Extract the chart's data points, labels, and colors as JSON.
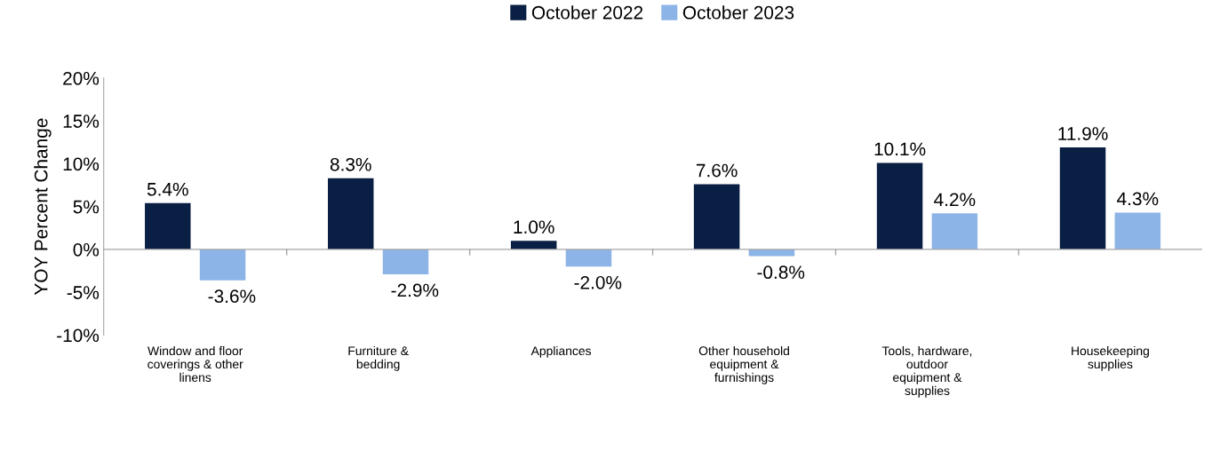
{
  "chart_data": {
    "type": "bar",
    "ylabel": "YOY Percent Change",
    "categories": [
      "Window and floor\ncoverings & other\nlinens",
      "Furniture &\nbedding",
      "Appliances",
      "Other household\nequipment &\nfurnishings",
      "Tools, hardware,\noutdoor\nequipment &\nsupplies",
      "Housekeeping\nsupplies"
    ],
    "series": [
      {
        "name": "October 2022",
        "color": "#0a1f44",
        "values": [
          5.4,
          8.3,
          1.0,
          7.6,
          10.1,
          11.9
        ],
        "value_labels": [
          "5.4%",
          "8.3%",
          "1.0%",
          "7.6%",
          "10.1%",
          "11.9%"
        ]
      },
      {
        "name": "October 2023",
        "color": "#8db4e6",
        "values": [
          -3.6,
          -2.9,
          -2.0,
          -0.8,
          4.2,
          4.3
        ],
        "value_labels": [
          "-3.6%",
          "-2.9%",
          "-2.0%",
          "-0.8%",
          "4.2%",
          "4.3%"
        ]
      }
    ],
    "ylim": [
      -10,
      20
    ],
    "yticks": [
      {
        "value": -10,
        "label": "-10%"
      },
      {
        "value": -5,
        "label": "-5%"
      },
      {
        "value": 0,
        "label": "0%"
      },
      {
        "value": 5,
        "label": "5%"
      },
      {
        "value": 10,
        "label": "10%"
      },
      {
        "value": 15,
        "label": "15%"
      },
      {
        "value": 20,
        "label": "20%"
      }
    ],
    "legend": "top"
  }
}
